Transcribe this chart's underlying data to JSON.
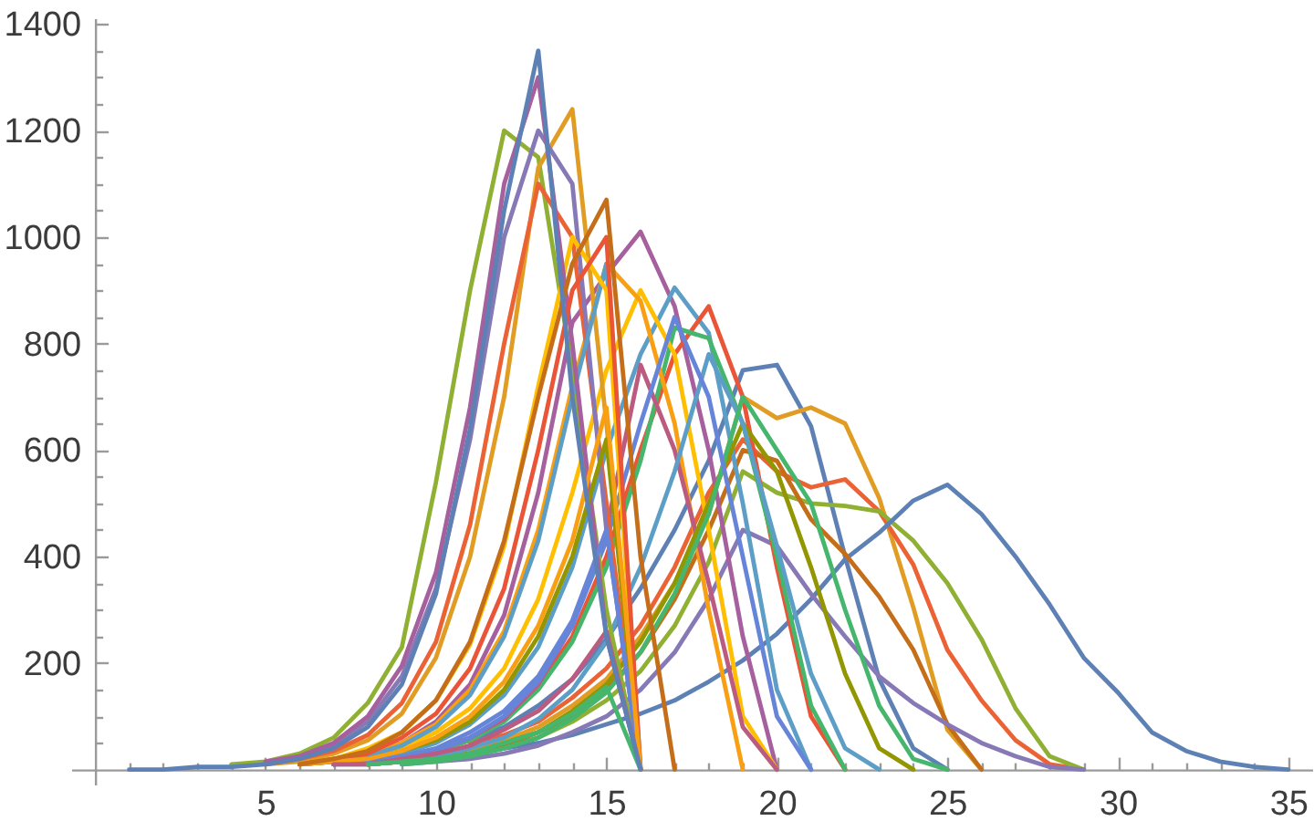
{
  "chart_data": {
    "type": "line",
    "x": [
      1,
      2,
      3,
      4,
      5,
      6,
      7,
      8,
      9,
      10,
      11,
      12,
      13,
      14,
      15,
      16,
      17,
      18,
      19,
      20,
      21,
      22,
      23,
      24,
      25,
      26,
      27,
      28,
      29,
      30,
      31,
      32,
      33,
      34,
      35
    ],
    "xlim": [
      -0.7,
      35.7
    ],
    "xticks": [
      {
        "value": 1,
        "label": null
      },
      {
        "value": 2,
        "label": null
      },
      {
        "value": 3,
        "label": null
      },
      {
        "value": 4,
        "label": null
      },
      5,
      {
        "value": 6,
        "label": null
      },
      {
        "value": 7,
        "label": null
      },
      {
        "value": 8,
        "label": null
      },
      {
        "value": 9,
        "label": null
      },
      10,
      {
        "value": 11,
        "label": null
      },
      {
        "value": 12,
        "label": null
      },
      {
        "value": 13,
        "label": null
      },
      {
        "value": 14,
        "label": null
      },
      15,
      {
        "value": 16,
        "label": null
      },
      {
        "value": 17,
        "label": null
      },
      {
        "value": 18,
        "label": null
      },
      {
        "value": 19,
        "label": null
      },
      20,
      {
        "value": 21,
        "label": null
      },
      {
        "value": 22,
        "label": null
      },
      {
        "value": 23,
        "label": null
      },
      {
        "value": 24,
        "label": null
      },
      25,
      {
        "value": 26,
        "label": null
      },
      {
        "value": 27,
        "label": null
      },
      {
        "value": 28,
        "label": null
      },
      {
        "value": 29,
        "label": null
      },
      30,
      {
        "value": 31,
        "label": null
      },
      {
        "value": 32,
        "label": null
      },
      {
        "value": 33,
        "label": null
      },
      {
        "value": 34,
        "label": null
      },
      35
    ],
    "ylim": [
      -28,
      1411
    ],
    "yticks": [
      {
        "value": 50,
        "label": null
      },
      {
        "value": 100,
        "label": null
      },
      {
        "value": 150,
        "label": null
      },
      200,
      {
        "value": 250,
        "label": null
      },
      {
        "value": 300,
        "label": null
      },
      {
        "value": 350,
        "label": null
      },
      400,
      {
        "value": 450,
        "label": null
      },
      {
        "value": 500,
        "label": null
      },
      {
        "value": 550,
        "label": null
      },
      600,
      {
        "value": 650,
        "label": null
      },
      {
        "value": 700,
        "label": null
      },
      {
        "value": 750,
        "label": null
      },
      800,
      {
        "value": 850,
        "label": null
      },
      {
        "value": 900,
        "label": null
      },
      {
        "value": 950,
        "label": null
      },
      1000,
      {
        "value": 1050,
        "label": null
      },
      {
        "value": 1100,
        "label": null
      },
      {
        "value": 1150,
        "label": null
      },
      1200,
      {
        "value": 1250,
        "label": null
      },
      {
        "value": 1300,
        "label": null
      },
      {
        "value": 1350,
        "label": null
      },
      1400
    ],
    "series": [
      {
        "color": "#5e81b5",
        "values": [
          null,
          null,
          null,
          null,
          null,
          null,
          10,
          15,
          25,
          35,
          55,
          80,
          120,
          170,
          245,
          340,
          450,
          580,
          750,
          760,
          645,
          400,
          170,
          40,
          0,
          null,
          null,
          null,
          null,
          null,
          null,
          null,
          null,
          null,
          null
        ]
      },
      {
        "color": "#e19c24",
        "values": [
          null,
          null,
          null,
          null,
          null,
          null,
          null,
          10,
          15,
          25,
          35,
          55,
          80,
          120,
          170,
          250,
          350,
          480,
          700,
          660,
          680,
          650,
          510,
          305,
          75,
          0,
          null,
          null,
          null,
          null,
          null,
          null,
          null,
          null,
          null
        ]
      },
      {
        "color": "#eb6235",
        "values": [
          null,
          null,
          null,
          null,
          null,
          null,
          null,
          null,
          null,
          null,
          50,
          65,
          90,
          135,
          190,
          270,
          380,
          520,
          620,
          560,
          530,
          545,
          485,
          385,
          225,
          130,
          55,
          10,
          0,
          null,
          null,
          null,
          null,
          null,
          null
        ]
      },
      {
        "color": "#8fb032",
        "values": [
          null,
          null,
          null,
          null,
          null,
          null,
          null,
          10,
          15,
          20,
          30,
          40,
          60,
          90,
          130,
          185,
          270,
          390,
          560,
          520,
          500,
          495,
          485,
          430,
          350,
          245,
          115,
          25,
          0,
          null,
          null,
          null,
          null,
          null,
          null
        ]
      },
      {
        "color": "#5e81b5",
        "values": [
          null,
          null,
          null,
          null,
          null,
          null,
          10,
          10,
          15,
          20,
          30,
          40,
          50,
          65,
          85,
          105,
          130,
          165,
          205,
          255,
          320,
          395,
          445,
          505,
          535,
          480,
          400,
          310,
          210,
          145,
          70,
          35,
          15,
          5,
          0
        ]
      },
      {
        "color": "#c56e1a",
        "values": [
          null,
          null,
          null,
          null,
          null,
          null,
          null,
          10,
          15,
          20,
          30,
          45,
          70,
          100,
          150,
          220,
          320,
          450,
          600,
          580,
          470,
          405,
          325,
          225,
          85,
          0,
          null,
          null,
          null,
          null,
          null,
          null,
          null,
          null,
          null
        ]
      },
      {
        "color": "#8778b6",
        "values": [
          null,
          null,
          null,
          null,
          null,
          null,
          null,
          null,
          10,
          15,
          20,
          30,
          45,
          70,
          100,
          150,
          220,
          320,
          450,
          420,
          330,
          250,
          175,
          125,
          85,
          50,
          25,
          5,
          0,
          null,
          null,
          null,
          null,
          null,
          null
        ]
      },
      {
        "color": "#a5609d",
        "values": [
          null,
          null,
          null,
          null,
          null,
          10,
          15,
          30,
          50,
          90,
          160,
          290,
          520,
          840,
          930,
          1010,
          870,
          600,
          250,
          0,
          null,
          null,
          null,
          null,
          null,
          null,
          null,
          null,
          null,
          null,
          null,
          null,
          null,
          null,
          null
        ]
      },
      {
        "color": "#5d9ec7",
        "values": [
          null,
          null,
          null,
          null,
          null,
          null,
          10,
          20,
          30,
          50,
          85,
          140,
          230,
          380,
          600,
          780,
          905,
          820,
          500,
          150,
          0,
          null,
          null,
          null,
          null,
          null,
          null,
          null,
          null,
          null,
          null,
          null,
          null,
          null,
          null
        ]
      },
      {
        "color": "#e95536",
        "values": [
          null,
          null,
          null,
          null,
          null,
          null,
          10,
          15,
          20,
          35,
          60,
          95,
          155,
          250,
          400,
          600,
          780,
          870,
          700,
          380,
          100,
          0,
          null,
          null,
          null,
          null,
          null,
          null,
          null,
          null,
          null,
          null,
          null,
          null,
          null
        ]
      },
      {
        "color": "#47b66d",
        "values": [
          null,
          null,
          null,
          null,
          null,
          null,
          10,
          15,
          20,
          35,
          55,
          90,
          150,
          240,
          380,
          580,
          830,
          810,
          650,
          400,
          120,
          0,
          null,
          null,
          null,
          null,
          null,
          null,
          null,
          null,
          null,
          null,
          null,
          null,
          null
        ]
      },
      {
        "color": "#ffbf00",
        "values": [
          null,
          null,
          null,
          null,
          null,
          10,
          15,
          25,
          40,
          70,
          115,
          190,
          320,
          520,
          750,
          900,
          780,
          450,
          100,
          0,
          null,
          null,
          null,
          null,
          null,
          null,
          null,
          null,
          null,
          null,
          null,
          null,
          null,
          null,
          null
        ]
      },
      {
        "color": "#f89f13",
        "values": [
          null,
          null,
          null,
          null,
          null,
          10,
          15,
          30,
          50,
          85,
          150,
          260,
          450,
          720,
          950,
          880,
          650,
          300,
          0,
          null,
          null,
          null,
          null,
          null,
          null,
          null,
          null,
          null,
          null,
          null,
          null,
          null,
          null,
          null,
          null
        ]
      },
      {
        "color": "#bc5b80",
        "values": [
          null,
          null,
          null,
          null,
          null,
          null,
          10,
          15,
          20,
          35,
          60,
          95,
          160,
          270,
          450,
          760,
          600,
          350,
          80,
          0,
          null,
          null,
          null,
          null,
          null,
          null,
          null,
          null,
          null,
          null,
          null,
          null,
          null,
          null,
          null
        ]
      },
      {
        "color": "#929600",
        "values": [
          null,
          null,
          null,
          null,
          null,
          null,
          null,
          10,
          15,
          20,
          30,
          50,
          70,
          110,
          160,
          240,
          350,
          500,
          650,
          560,
          380,
          180,
          40,
          0,
          null,
          null,
          null,
          null,
          null,
          null,
          null,
          null,
          null,
          null,
          null
        ]
      },
      {
        "color": "#5d9ec7",
        "values": [
          null,
          null,
          null,
          null,
          null,
          null,
          null,
          10,
          15,
          25,
          40,
          60,
          95,
          150,
          240,
          380,
          560,
          780,
          650,
          420,
          180,
          40,
          0,
          null,
          null,
          null,
          null,
          null,
          null,
          null,
          null,
          null,
          null,
          null,
          null
        ]
      },
      {
        "color": "#47b66d",
        "values": [
          null,
          null,
          null,
          null,
          null,
          null,
          null,
          null,
          10,
          15,
          25,
          40,
          60,
          95,
          145,
          220,
          330,
          480,
          700,
          600,
          500,
          300,
          120,
          20,
          0,
          null,
          null,
          null,
          null,
          null,
          null,
          null,
          null,
          null,
          null
        ]
      },
      {
        "color": "#6685d9",
        "values": [
          null,
          null,
          null,
          null,
          null,
          null,
          10,
          15,
          20,
          35,
          60,
          100,
          165,
          270,
          430,
          650,
          850,
          700,
          400,
          100,
          0,
          null,
          null,
          null,
          null,
          null,
          null,
          null,
          null,
          null,
          null,
          null,
          null,
          null,
          null
        ]
      },
      {
        "color": "#8fb032",
        "values": [
          null,
          null,
          null,
          10,
          15,
          30,
          60,
          125,
          230,
          540,
          900,
          1200,
          1150,
          750,
          300,
          0,
          null,
          null,
          null,
          null,
          null,
          null,
          null,
          null,
          null,
          null,
          null,
          null,
          null,
          null,
          null,
          null,
          null,
          null,
          null
        ]
      },
      {
        "color": "#e19c24",
        "values": [
          null,
          null,
          null,
          null,
          10,
          15,
          30,
          55,
          105,
          210,
          400,
          700,
          1130,
          1240,
          650,
          0,
          null,
          null,
          null,
          null,
          null,
          null,
          null,
          null,
          null,
          null,
          null,
          null,
          null,
          null,
          null,
          null,
          null,
          null,
          null
        ]
      },
      {
        "color": "#eb6235",
        "values": [
          null,
          null,
          null,
          null,
          10,
          20,
          35,
          65,
          125,
          240,
          460,
          800,
          1100,
          1000,
          500,
          0,
          null,
          null,
          null,
          null,
          null,
          null,
          null,
          null,
          null,
          null,
          null,
          null,
          null,
          null,
          null,
          null,
          null,
          null,
          null
        ]
      },
      {
        "color": "#8778b6",
        "values": [
          null,
          null,
          null,
          null,
          10,
          25,
          45,
          90,
          175,
          340,
          620,
          1000,
          1200,
          1100,
          450,
          0,
          null,
          null,
          null,
          null,
          null,
          null,
          null,
          null,
          null,
          null,
          null,
          null,
          null,
          null,
          null,
          null,
          null,
          null,
          null
        ]
      },
      {
        "color": "#5d9ec7",
        "values": [
          null,
          null,
          null,
          null,
          null,
          10,
          15,
          25,
          45,
          80,
          140,
          250,
          430,
          700,
          950,
          0,
          null,
          null,
          null,
          null,
          null,
          null,
          null,
          null,
          null,
          null,
          null,
          null,
          null,
          null,
          null,
          null,
          null,
          null,
          null
        ]
      },
      {
        "color": "#ffbf00",
        "values": [
          null,
          null,
          null,
          null,
          null,
          10,
          20,
          40,
          70,
          130,
          235,
          420,
          720,
          1000,
          900,
          0,
          null,
          null,
          null,
          null,
          null,
          null,
          null,
          null,
          null,
          null,
          null,
          null,
          null,
          null,
          null,
          null,
          null,
          null,
          null
        ]
      },
      {
        "color": "#a5609d",
        "values": [
          null,
          null,
          null,
          null,
          15,
          25,
          50,
          100,
          195,
          370,
          680,
          1100,
          1300,
          800,
          250,
          0,
          null,
          null,
          null,
          null,
          null,
          null,
          null,
          null,
          null,
          null,
          null,
          null,
          null,
          null,
          null,
          null,
          null,
          null,
          null
        ]
      },
      {
        "color": "#929600",
        "values": [
          null,
          null,
          null,
          null,
          null,
          10,
          15,
          20,
          35,
          55,
          90,
          150,
          250,
          400,
          620,
          0,
          null,
          null,
          null,
          null,
          null,
          null,
          null,
          null,
          null,
          null,
          null,
          null,
          null,
          null,
          null,
          null,
          null,
          null,
          null
        ]
      },
      {
        "color": "#e95536",
        "values": [
          null,
          null,
          null,
          null,
          null,
          10,
          20,
          30,
          60,
          105,
          190,
          340,
          600,
          900,
          1000,
          0,
          null,
          null,
          null,
          null,
          null,
          null,
          null,
          null,
          null,
          null,
          null,
          null,
          null,
          null,
          null,
          null,
          null,
          null,
          null
        ]
      },
      {
        "color": "#6685d9",
        "values": [
          null,
          null,
          null,
          null,
          null,
          null,
          10,
          15,
          25,
          40,
          70,
          110,
          175,
          280,
          450,
          0,
          null,
          null,
          null,
          null,
          null,
          null,
          null,
          null,
          null,
          null,
          null,
          null,
          null,
          null,
          null,
          null,
          null,
          null,
          null
        ]
      },
      {
        "color": "#f89f13",
        "values": [
          null,
          null,
          null,
          null,
          null,
          10,
          15,
          20,
          35,
          60,
          100,
          165,
          270,
          430,
          680,
          0,
          null,
          null,
          null,
          null,
          null,
          null,
          null,
          null,
          null,
          null,
          null,
          null,
          null,
          null,
          null,
          null,
          null,
          null,
          null
        ]
      },
      {
        "color": "#bc5b80",
        "values": [
          null,
          null,
          null,
          null,
          null,
          null,
          10,
          10,
          20,
          30,
          45,
          75,
          110,
          170,
          260,
          0,
          null,
          null,
          null,
          null,
          null,
          null,
          null,
          null,
          null,
          null,
          null,
          null,
          null,
          null,
          null,
          null,
          null,
          null,
          null
        ]
      },
      {
        "color": "#47b66d",
        "values": [
          null,
          null,
          null,
          null,
          null,
          null,
          null,
          10,
          15,
          20,
          30,
          50,
          70,
          105,
          155,
          0,
          null,
          null,
          null,
          null,
          null,
          null,
          null,
          null,
          null,
          null,
          null,
          null,
          null,
          null,
          null,
          null,
          null,
          null,
          null
        ]
      },
      {
        "color": "#c56e1a",
        "values": [
          null,
          null,
          null,
          null,
          null,
          10,
          20,
          35,
          70,
          130,
          240,
          430,
          700,
          950,
          1070,
          400,
          0,
          null,
          null,
          null,
          null,
          null,
          null,
          null,
          null,
          null,
          null,
          null,
          null,
          null,
          null,
          null,
          null,
          null,
          null
        ]
      },
      {
        "color": "#5e81b5",
        "values": [
          0,
          0,
          5,
          5,
          10,
          20,
          40,
          80,
          160,
          330,
          640,
          1050,
          1350,
          700,
          250,
          0,
          null,
          null,
          null,
          null,
          null,
          null,
          null,
          null,
          null,
          null,
          null,
          null,
          null,
          null,
          null,
          null,
          null,
          null,
          null
        ]
      }
    ]
  }
}
